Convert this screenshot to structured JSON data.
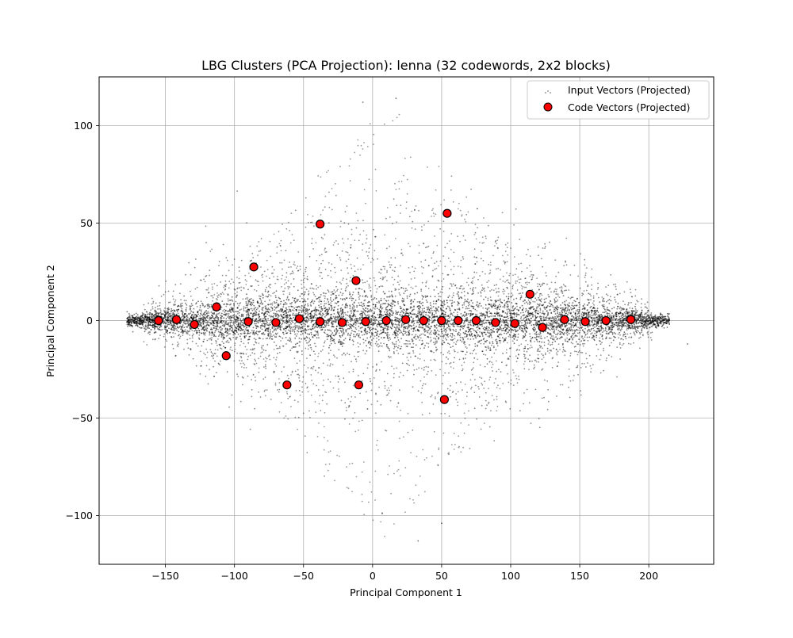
{
  "chart_data": {
    "type": "scatter",
    "title": "LBG Clusters (PCA Projection): lenna (32 codewords, 2x2 blocks)",
    "xlabel": "Principal Component 1",
    "ylabel": "Principal Component 2",
    "xlim": [
      -198,
      247
    ],
    "ylim": [
      -125,
      125
    ],
    "xticks": [
      -150,
      -100,
      -50,
      0,
      50,
      100,
      150,
      200
    ],
    "yticks": [
      -100,
      -50,
      0,
      50,
      100
    ],
    "xtick_labels": [
      "−150",
      "−100",
      "−50",
      "0",
      "50",
      "100",
      "150",
      "200"
    ],
    "ytick_labels": [
      "−100",
      "−50",
      "0",
      "50",
      "100"
    ],
    "grid": true,
    "legend_position": "top-right",
    "series": [
      {
        "name": "Input Vectors (Projected)",
        "color": "#000000",
        "marker": "point",
        "distribution": {
          "x_range": [
            -178,
            215
          ],
          "core_y_spread": 12,
          "outlier_y_range": [
            -113,
            114
          ],
          "outlier_points": [
            {
              "x": 228,
              "y": -12
            },
            {
              "x": -7,
              "y": 112
            },
            {
              "x": 17,
              "y": 114
            },
            {
              "x": 7,
              "y": -99
            },
            {
              "x": 33,
              "y": -113
            },
            {
              "x": 50,
              "y": -104
            }
          ]
        }
      },
      {
        "name": "Code Vectors (Projected)",
        "color": "#ff0000",
        "edge_color": "#000000",
        "marker": "circle",
        "points": [
          {
            "x": -155,
            "y": 0
          },
          {
            "x": -142,
            "y": 0.5
          },
          {
            "x": -129,
            "y": -2
          },
          {
            "x": -113,
            "y": 7
          },
          {
            "x": -106,
            "y": -18
          },
          {
            "x": -90,
            "y": -0.5
          },
          {
            "x": -86,
            "y": 27.5
          },
          {
            "x": -70,
            "y": -1
          },
          {
            "x": -62,
            "y": -33
          },
          {
            "x": -53,
            "y": 1
          },
          {
            "x": -38,
            "y": 49.5
          },
          {
            "x": -38,
            "y": -0.5
          },
          {
            "x": -22,
            "y": -1
          },
          {
            "x": -12,
            "y": 20.5
          },
          {
            "x": -10,
            "y": -33
          },
          {
            "x": -5,
            "y": -0.5
          },
          {
            "x": 10,
            "y": 0
          },
          {
            "x": 24,
            "y": 0.5
          },
          {
            "x": 37,
            "y": 0
          },
          {
            "x": 50,
            "y": 0
          },
          {
            "x": 52,
            "y": -40.5
          },
          {
            "x": 54,
            "y": 55
          },
          {
            "x": 62,
            "y": 0
          },
          {
            "x": 75,
            "y": 0
          },
          {
            "x": 89,
            "y": -1
          },
          {
            "x": 103,
            "y": -1.5
          },
          {
            "x": 114,
            "y": 13.5
          },
          {
            "x": 123,
            "y": -3.5
          },
          {
            "x": 139,
            "y": 0.5
          },
          {
            "x": 154,
            "y": -0.5
          },
          {
            "x": 169,
            "y": 0
          },
          {
            "x": 187,
            "y": 0.5
          }
        ]
      }
    ]
  }
}
